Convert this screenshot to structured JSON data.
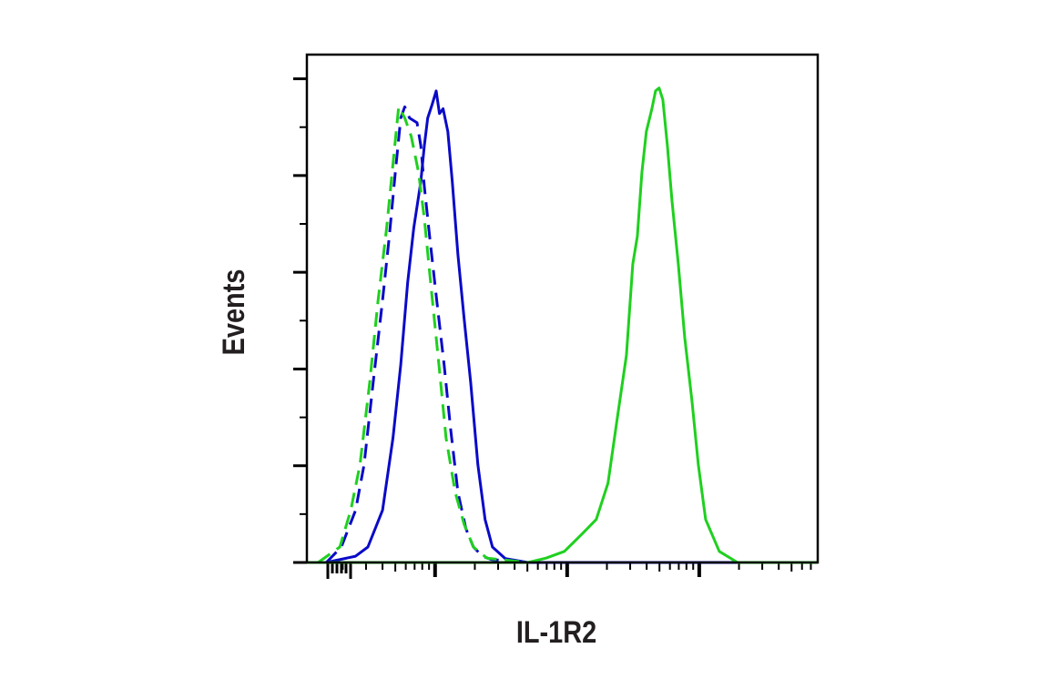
{
  "chart_data": {
    "type": "line",
    "title": "",
    "xlabel": "IL-1R2",
    "ylabel": "Events",
    "x_scale": "log",
    "xlim": [
      10.7,
      78900
    ],
    "ylim": [
      0,
      105
    ],
    "x_major_ticks": [
      100,
      1000,
      10000
    ],
    "y_ticks": [
      0,
      20,
      40,
      60,
      80,
      100
    ],
    "tick_labels_shown": false,
    "grid": false,
    "legend": "none",
    "colors": {
      "blue": "#0a0ac8",
      "green": "#1fd01f",
      "axis": "#000000"
    },
    "series": [
      {
        "color": "blue",
        "style": "solid",
        "x": [
          15,
          25,
          31,
          40,
          48,
          55,
          62,
          69,
          78,
          83,
          88,
          95,
          102,
          108,
          115,
          125,
          135,
          149,
          166,
          186,
          211,
          239,
          272,
          340,
          505,
          78900
        ],
        "y": [
          0,
          1.3,
          3.2,
          10.8,
          25.8,
          40.9,
          57.9,
          69.2,
          78.7,
          86.2,
          91.9,
          94.7,
          97.5,
          92.8,
          93.8,
          89.1,
          78.7,
          63.6,
          50.4,
          37.2,
          20.2,
          8.9,
          3.2,
          0.8,
          0,
          0
        ]
      },
      {
        "color": "green",
        "style": "solid",
        "x": [
          10.7,
          505,
          693,
          953,
          1310,
          1660,
          2040,
          2390,
          2810,
          3140,
          3400,
          3680,
          3980,
          4380,
          4670,
          4970,
          5300,
          5740,
          6210,
          6940,
          7760,
          8810,
          9840,
          11170,
          14190,
          19500,
          78900
        ],
        "y": [
          0,
          0,
          0.9,
          2.3,
          6.0,
          8.9,
          16.4,
          29.6,
          42.8,
          61.7,
          67.4,
          80.6,
          89.1,
          93.8,
          97.5,
          98.1,
          95.7,
          86.2,
          74.9,
          61.7,
          46.6,
          33.4,
          20.2,
          8.9,
          2.3,
          0,
          0
        ]
      },
      {
        "color": "blue",
        "style": "dashed",
        "x": [
          15,
          19.5,
          25,
          29,
          34,
          40,
          45,
          50,
          55,
          59,
          64,
          73,
          78,
          83,
          91,
          103,
          117,
          131,
          149,
          171,
          195,
          228,
          268,
          505
        ],
        "y": [
          0,
          3.2,
          10.8,
          20.2,
          37.2,
          54.2,
          67.4,
          80.6,
          91.9,
          94.2,
          91.9,
          90.9,
          86.2,
          77.7,
          67.4,
          54.2,
          40.9,
          27.7,
          14.5,
          7.0,
          3.2,
          1.3,
          0.6,
          0
        ]
      },
      {
        "color": "green",
        "style": "dashed",
        "x": [
          13,
          19,
          23,
          27,
          32,
          37,
          43,
          48,
          53,
          59,
          66,
          75,
          83,
          94,
          107,
          121,
          142,
          166,
          195,
          247,
          505
        ],
        "y": [
          0,
          3.2,
          10.8,
          20.2,
          37.2,
          54.2,
          69.2,
          82.5,
          94.2,
          91.9,
          88.1,
          80.6,
          71.1,
          56.0,
          40.9,
          25.8,
          14.5,
          7.9,
          3.2,
          0.9,
          0
        ]
      }
    ]
  }
}
